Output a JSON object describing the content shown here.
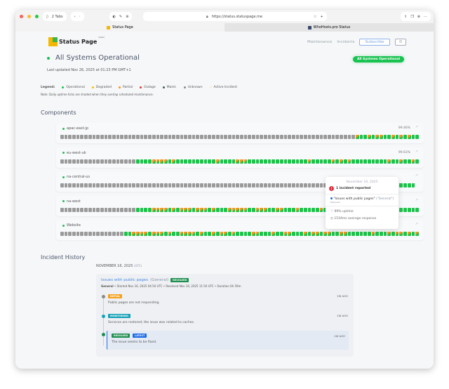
{
  "browser": {
    "tabs_count": "2 Tabs",
    "url": "https://status.statuspage.me",
    "tabs": [
      {
        "label": "Status Page",
        "active": true
      },
      {
        "label": "WhoHosts.pro Status",
        "active": false
      }
    ]
  },
  "header": {
    "logo": "Status Page",
    "logo_sup": "hosted",
    "nav": [
      "Maintenance",
      "Incidents"
    ],
    "subscribe": "Subscribe",
    "settings_icon": "gear-icon"
  },
  "status": {
    "title": "All Systems Operational",
    "updated": "Last updated Nov 26, 2025 at 01:23 PM GMT+1",
    "badge": "All Systems Operational",
    "color": "#19c251"
  },
  "legend": {
    "label": "Legend:",
    "items": [
      {
        "label": "Operational",
        "color": "#19c251"
      },
      {
        "label": "Degraded",
        "color": "#f5c000"
      },
      {
        "label": "Partial",
        "color": "#f7941d"
      },
      {
        "label": "Outage",
        "color": "#e53935"
      },
      {
        "label": "Maint.",
        "color": "#455a64"
      },
      {
        "label": "Unknown",
        "color": "#8a8a8a"
      },
      {
        "label": "Active Incident",
        "color": "#f8ead8"
      }
    ],
    "note": "Note: Daily uptime ticks are shaded when they overlap scheduled maintenance."
  },
  "components_title": "Components",
  "components": [
    {
      "name": "apac-east-jp",
      "uptime": "99.46%",
      "ticks": "ggggggggggggggggggggggggggggggggggggggggggggggggggggggggggggggggggggggggggpoopoppoopopopoo"
    },
    {
      "name": "eu-west-uk",
      "uptime": "99.63%",
      "ticks": "gggggggggggggggggggooooppppopoooooooooopoooopppooooooooooooooopooooopopopooooooooopoopoopopop"
    },
    {
      "name": "na-central-us",
      "uptime": "",
      "ticks": "gggggggggggggggggggggggggggggggggggggggggggggggggggggggggggggggggggggggggggggggggggggoooo"
    },
    {
      "name": "na-west",
      "uptime": "",
      "ticks": "gggggggggggggggggggooooppppopopppopppopooopppppoopppooppooopooooopoooopoooooooooppoooooooo"
    },
    {
      "name": "Website",
      "uptime": "",
      "ticks": "ggggggggggggggggooppppopppopooppppopoopoppopooooppooopooppooopoppoppooppoooooopooopoppopop"
    }
  ],
  "tooltip": {
    "date": "November 16, 2025",
    "headline": "1 incident reported",
    "incident": "\"Issues with public pages\"",
    "incident_group": "(\"General\")",
    "incident_status": "Resolved",
    "uptime": "99% uptime",
    "response": "1534ms average response"
  },
  "history": {
    "title": "Incident History",
    "date": "NOVEMBER 16, 2025",
    "tz": "(UTC)",
    "incident": {
      "title": "Issues with public pages",
      "group": "(General)",
      "badge": "RESOLVED",
      "meta_group": "General",
      "meta": " • Started Nov 16, 2025 04:50 UTC • Resolved Nov 16, 2025 11:50 UTC • Duration 6h 59m",
      "updates": [
        {
          "badge": "INITIAL",
          "badge_color": "#f7a21b",
          "dot": "#8a8a8a",
          "text": "Public pages are not responding.",
          "ago": "1W AGO"
        },
        {
          "badge": "MONITORING",
          "badge_color": "#17a2b8",
          "dot": "#17a2b8",
          "text": "Services are restored; the issue was related to caches.",
          "ago": "1W AGO"
        },
        {
          "badge": "RESOLVED",
          "badge2": "LATEST",
          "badge_color": "#1e8e4e",
          "dot": "#1e8e4e",
          "text": "The issue seems to be fixed.",
          "ago": "1W AGO"
        }
      ]
    }
  }
}
